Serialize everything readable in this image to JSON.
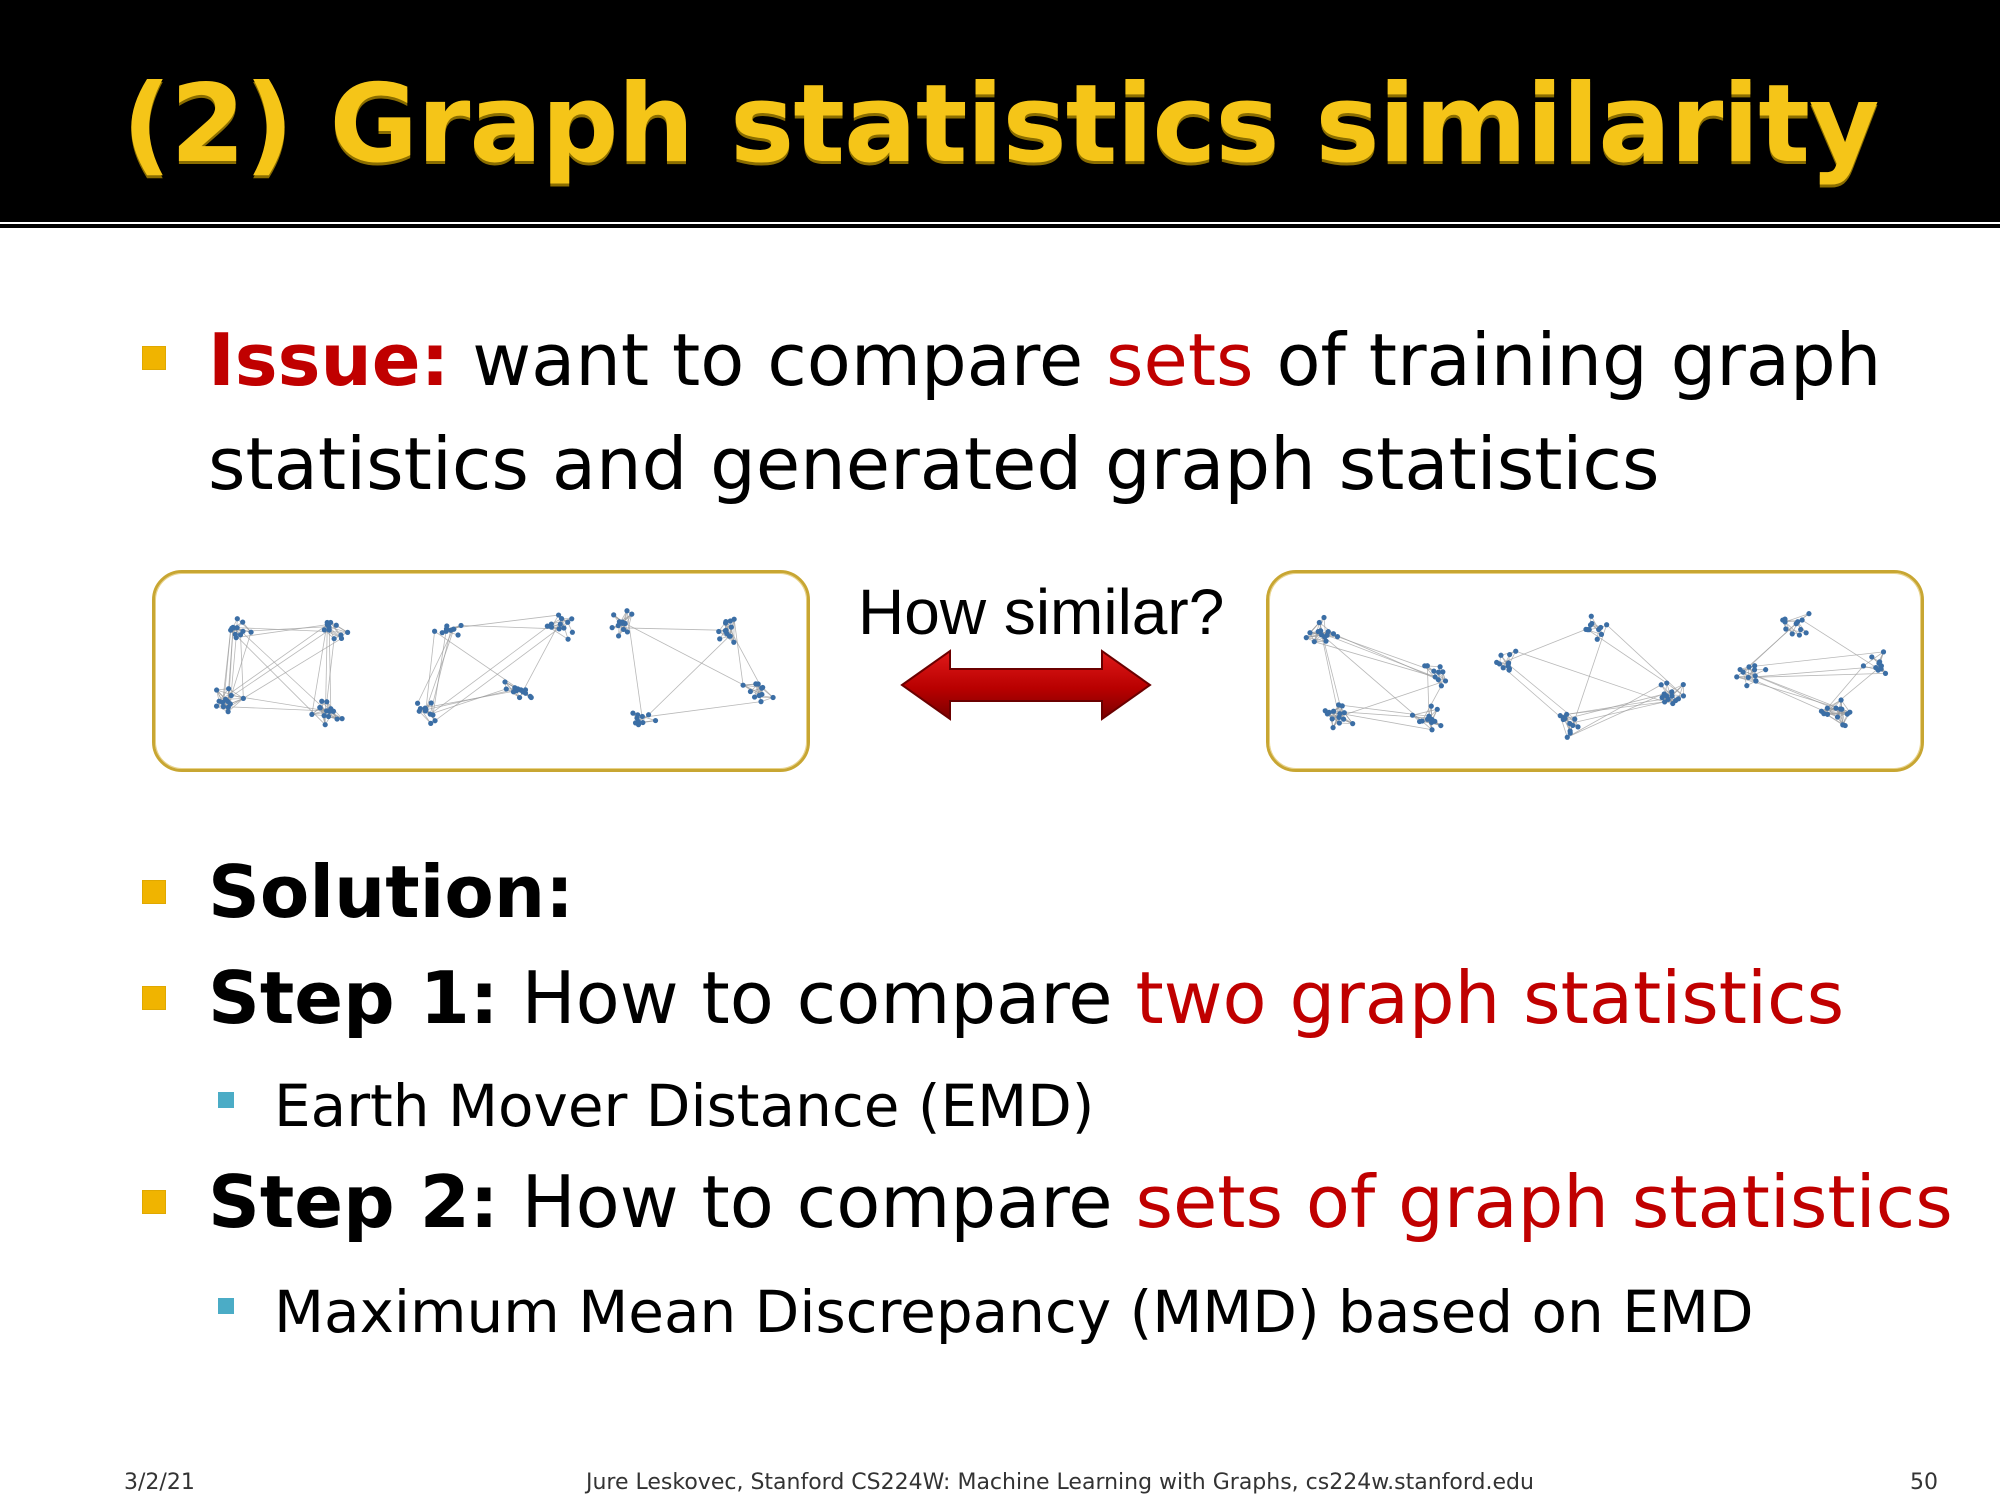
{
  "slide": {
    "title": "(2) Graph statistics similarity"
  },
  "issue": {
    "label": "Issue:",
    "text_a": " want to compare ",
    "text_highlight": "sets",
    "text_b": " of training graph",
    "line2": "statistics and generated graph statistics"
  },
  "figure": {
    "question": "How similar?",
    "colors": {
      "box_border": "#c8a632",
      "arrow": "#c00000",
      "node": "#3b6ea5",
      "edge": "#9a9a9a"
    }
  },
  "solution": {
    "label": "Solution:"
  },
  "step1": {
    "label": "Step 1:",
    "text": " How to compare ",
    "highlight": "two graph statistics",
    "sub": "Earth Mover Distance (EMD)"
  },
  "step2": {
    "label": "Step 2:",
    "text": " How to compare ",
    "highlight": "sets of graph statistics",
    "sub": "Maximum Mean Discrepancy (MMD) based on EMD"
  },
  "footer": {
    "date": "3/2/21",
    "credit": "Jure Leskovec, Stanford CS224W: Machine Learning with Graphs, cs224w.stanford.edu",
    "page": "50"
  },
  "colors": {
    "title": "#f5c518",
    "accent_red": "#c00000",
    "bullet": "#f0b400",
    "subbullet": "#4bacc6"
  }
}
